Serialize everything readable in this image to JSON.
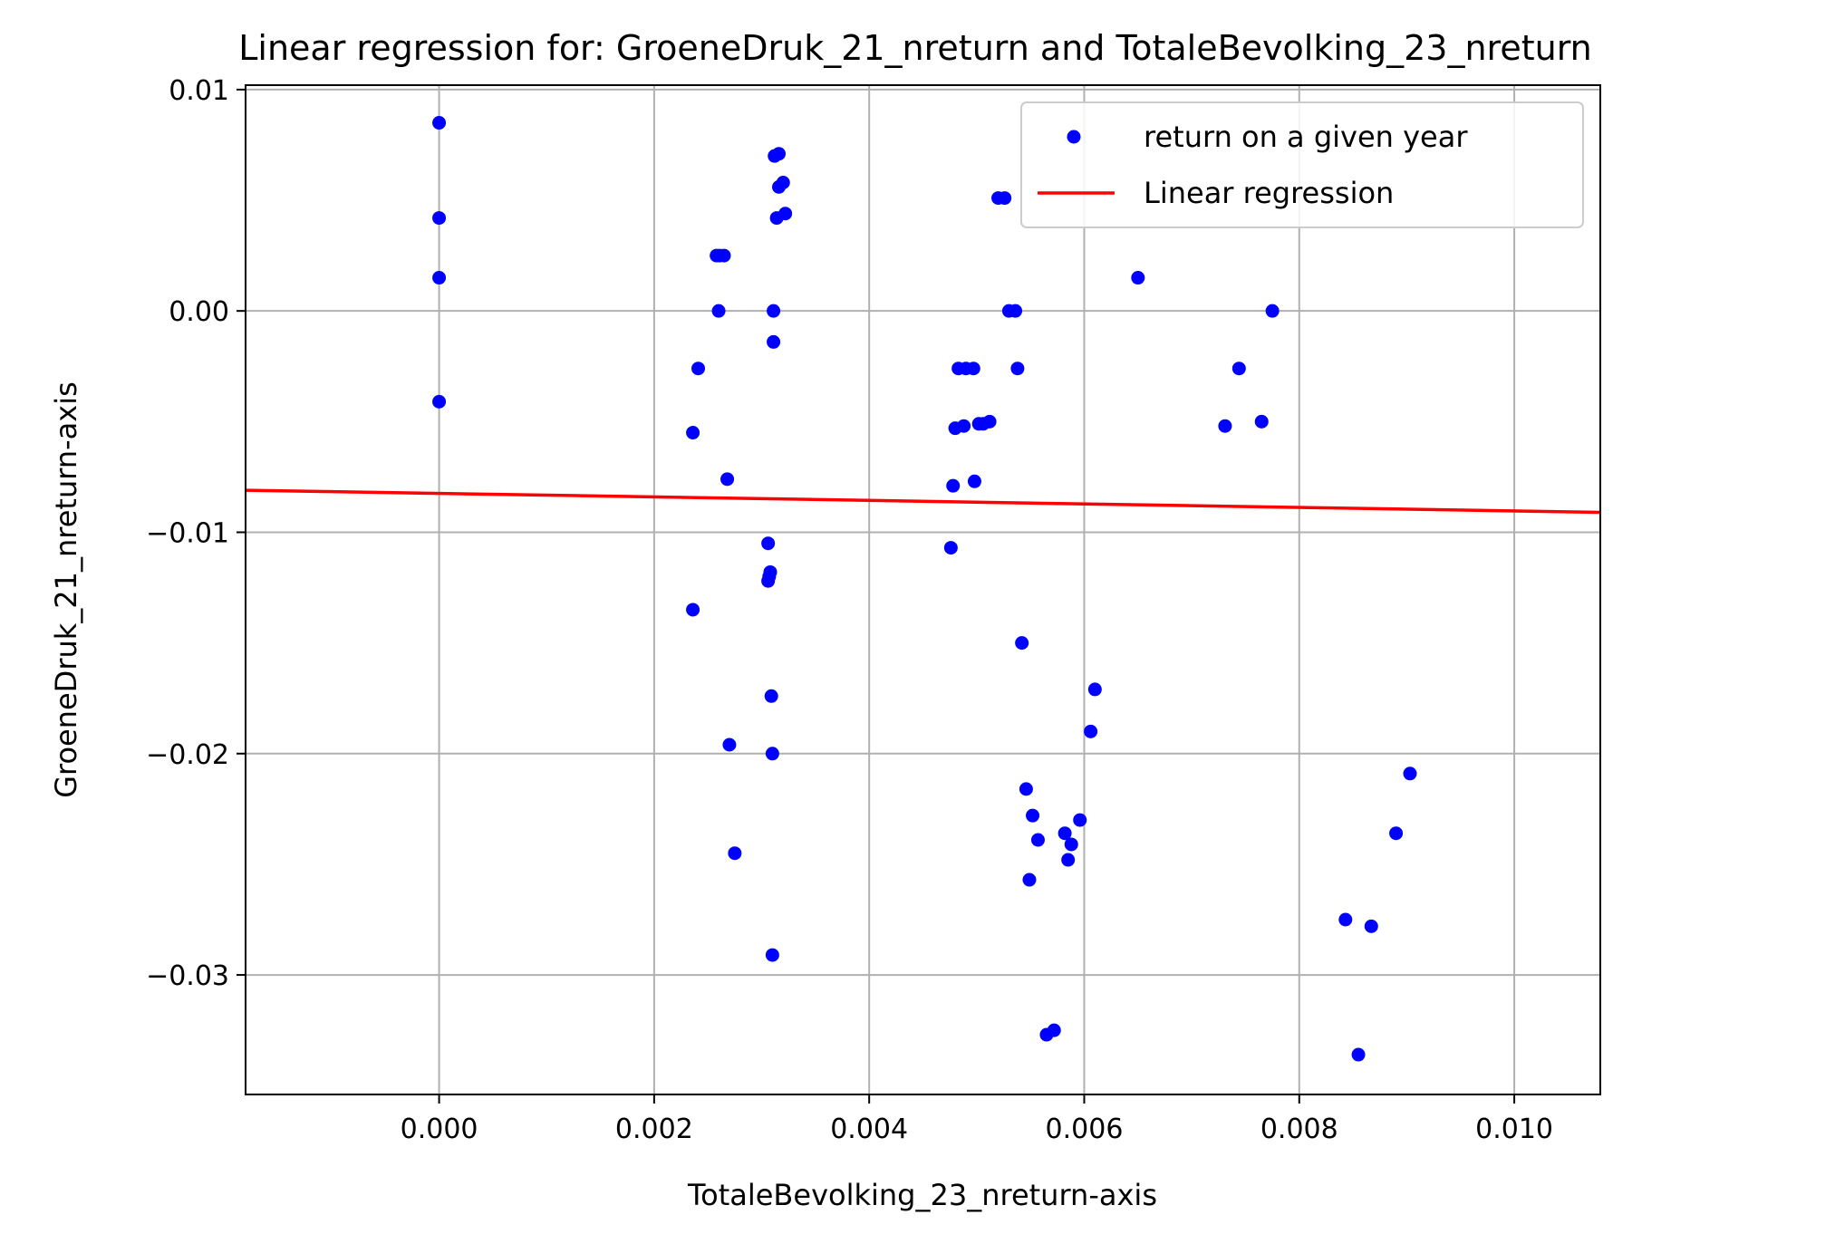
{
  "chart_data": {
    "type": "scatter",
    "title": "Linear regression for: GroeneDruk_21_nreturn and TotaleBevolking_23_nreturn",
    "xlabel": "TotaleBevolking_23_nreturn-axis",
    "ylabel": "GroeneDruk_21_nreturn-axis",
    "xlim": [
      -0.0018,
      0.0108
    ],
    "ylim": [
      -0.0354,
      0.0102
    ],
    "grid": true,
    "legend_position": "top-right",
    "x_ticks": [
      0.0,
      0.002,
      0.004,
      0.006,
      0.008,
      0.01
    ],
    "x_tick_labels": [
      "0.000",
      "0.002",
      "0.004",
      "0.006",
      "0.008",
      "0.010"
    ],
    "y_ticks": [
      0.01,
      0.0,
      -0.01,
      -0.02,
      -0.03
    ],
    "y_tick_labels": [
      "0.01",
      "0.00",
      "−0.01",
      "−0.02",
      "−0.03"
    ],
    "series": [
      {
        "name": "return on a given year",
        "kind": "scatter",
        "color": "#0000ff",
        "points": [
          [
            0.0,
            0.0085
          ],
          [
            0.0,
            0.0042
          ],
          [
            0.0,
            0.0015
          ],
          [
            0.0,
            -0.0041
          ],
          [
            0.00236,
            -0.0055
          ],
          [
            0.00236,
            -0.0135
          ],
          [
            0.00241,
            -0.0026
          ],
          [
            0.00258,
            0.0025
          ],
          [
            0.00261,
            0.0025
          ],
          [
            0.00265,
            0.0025
          ],
          [
            0.0026,
            0.0
          ],
          [
            0.00268,
            -0.0076
          ],
          [
            0.0027,
            -0.0196
          ],
          [
            0.00275,
            -0.0245
          ],
          [
            0.00306,
            -0.0105
          ],
          [
            0.00306,
            -0.0122
          ],
          [
            0.00307,
            -0.012
          ],
          [
            0.00308,
            -0.0118
          ],
          [
            0.00309,
            -0.0174
          ],
          [
            0.0031,
            -0.02
          ],
          [
            0.0031,
            -0.0291
          ],
          [
            0.00311,
            0.0
          ],
          [
            0.00311,
            -0.0014
          ],
          [
            0.00312,
            0.007
          ],
          [
            0.00316,
            0.0071
          ],
          [
            0.00316,
            0.0056
          ],
          [
            0.0032,
            0.0058
          ],
          [
            0.00314,
            0.0042
          ],
          [
            0.00322,
            0.0044
          ],
          [
            0.00476,
            -0.0107
          ],
          [
            0.00478,
            -0.0079
          ],
          [
            0.0048,
            -0.0053
          ],
          [
            0.00483,
            -0.0026
          ],
          [
            0.0049,
            -0.0026
          ],
          [
            0.00497,
            -0.0026
          ],
          [
            0.00488,
            -0.0052
          ],
          [
            0.00502,
            -0.0051
          ],
          [
            0.00506,
            -0.0051
          ],
          [
            0.00512,
            -0.005
          ],
          [
            0.00498,
            -0.0077
          ],
          [
            0.0052,
            0.0051
          ],
          [
            0.00526,
            0.0051
          ],
          [
            0.0053,
            0.0
          ],
          [
            0.00536,
            0.0
          ],
          [
            0.00538,
            -0.0026
          ],
          [
            0.00542,
            -0.015
          ],
          [
            0.00546,
            -0.0216
          ],
          [
            0.00552,
            -0.0228
          ],
          [
            0.00549,
            -0.0257
          ],
          [
            0.00557,
            -0.0239
          ],
          [
            0.00565,
            -0.0327
          ],
          [
            0.00572,
            -0.0325
          ],
          [
            0.00582,
            -0.0236
          ],
          [
            0.00588,
            -0.0241
          ],
          [
            0.00585,
            -0.0248
          ],
          [
            0.00596,
            -0.023
          ],
          [
            0.00606,
            -0.019
          ],
          [
            0.0061,
            -0.0171
          ],
          [
            0.0065,
            0.0015
          ],
          [
            0.00731,
            -0.0052
          ],
          [
            0.00744,
            -0.0026
          ],
          [
            0.00765,
            -0.005
          ],
          [
            0.00775,
            0.0
          ],
          [
            0.00843,
            -0.0275
          ],
          [
            0.00855,
            -0.0336
          ],
          [
            0.00867,
            -0.0278
          ],
          [
            0.0089,
            -0.0236
          ],
          [
            0.00903,
            -0.0209
          ]
        ]
      },
      {
        "name": "Linear regression",
        "kind": "line",
        "color": "#ff0000",
        "points": [
          [
            -0.0018,
            -0.0081
          ],
          [
            0.0108,
            -0.0091
          ]
        ]
      }
    ]
  }
}
